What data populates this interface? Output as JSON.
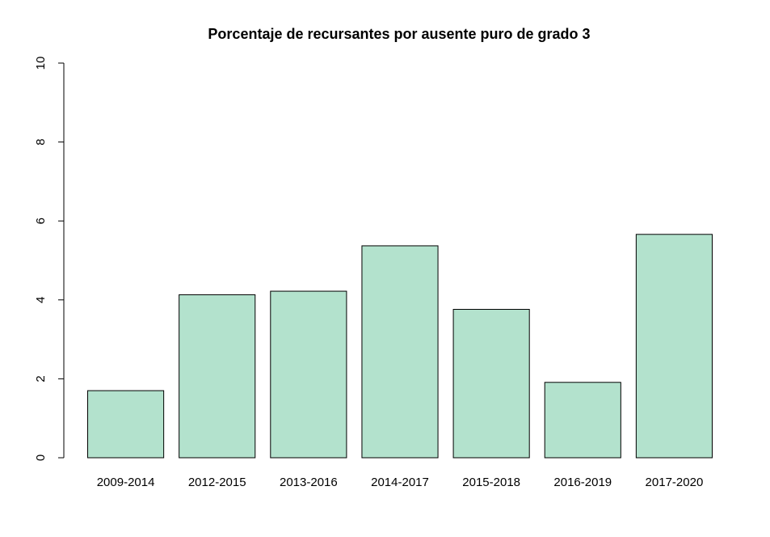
{
  "chart_data": {
    "type": "bar",
    "title": "Porcentaje de recursantes por ausente puro de grado 3",
    "xlabel": "",
    "ylabel": "",
    "categories": [
      "2009-2014",
      "2012-2015",
      "2013-2016",
      "2014-2017",
      "2015-2018",
      "2016-2019",
      "2017-2020"
    ],
    "values": [
      1.7,
      4.13,
      4.22,
      5.37,
      3.76,
      1.91,
      5.66
    ],
    "ylim": [
      0,
      10
    ],
    "yticks": [
      "0",
      "2",
      "4",
      "6",
      "8",
      "10"
    ],
    "bar_color": "#b3e2cd",
    "grid": false,
    "legend": "none"
  }
}
